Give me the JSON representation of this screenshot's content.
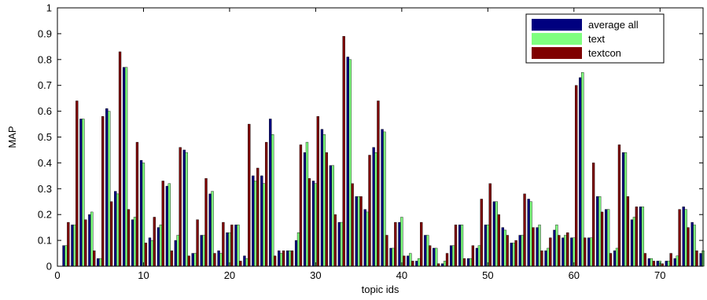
{
  "chart_data": {
    "type": "bar",
    "title": "",
    "xlabel": "topic ids",
    "ylabel": "MAP",
    "xlim": [
      0,
      75
    ],
    "ylim": [
      0,
      1
    ],
    "x_ticks": [
      0,
      10,
      20,
      30,
      40,
      50,
      60,
      70
    ],
    "y_ticks": [
      0,
      0.1,
      0.2,
      0.3,
      0.4,
      0.5,
      0.6,
      0.7,
      0.8,
      0.9,
      1
    ],
    "y_tick_labels": [
      "0",
      "0.1",
      "0.2",
      "0.3",
      "0.4",
      "0.5",
      "0.6",
      "0.7",
      "0.8",
      "0.9",
      "1"
    ],
    "grid": false,
    "legend_position": "top-right",
    "x": [
      1,
      2,
      3,
      4,
      5,
      6,
      7,
      8,
      9,
      10,
      11,
      12,
      13,
      14,
      15,
      16,
      17,
      18,
      19,
      20,
      21,
      22,
      23,
      24,
      25,
      26,
      27,
      28,
      29,
      30,
      31,
      32,
      33,
      34,
      35,
      36,
      37,
      38,
      39,
      40,
      41,
      42,
      43,
      44,
      45,
      46,
      47,
      48,
      49,
      50,
      51,
      52,
      53,
      54,
      55,
      56,
      57,
      58,
      59,
      60,
      61,
      62,
      63,
      64,
      65,
      66,
      67,
      68,
      69,
      70,
      71,
      72,
      73,
      74,
      75
    ],
    "series": [
      {
        "name": "average all",
        "color": "#00007f",
        "values": [
          0.08,
          0.16,
          0.57,
          0.2,
          0.03,
          0.61,
          0.29,
          0.77,
          0.18,
          0.41,
          0.11,
          0.15,
          0.31,
          0.1,
          0.45,
          0.05,
          0.12,
          0.28,
          0.06,
          0.13,
          0.16,
          0.04,
          0.35,
          0.35,
          0.57,
          0.06,
          0.06,
          0.1,
          0.44,
          0.33,
          0.53,
          0.39,
          0.17,
          0.81,
          0.27,
          0.22,
          0.46,
          0.53,
          0.07,
          0.17,
          0.04,
          0.02,
          0.12,
          0.07,
          0.01,
          0.08,
          0.16,
          0.03,
          0.07,
          0.16,
          0.25,
          0.15,
          0.09,
          0.12,
          0.26,
          0.15,
          0.06,
          0.14,
          0.11,
          0.11,
          0.73,
          0.11,
          0.27,
          0.22,
          0.06,
          0.44,
          0.18,
          0.23,
          0.03,
          0.02,
          0.02,
          0.03,
          0.23,
          0.17,
          0.05
        ]
      },
      {
        "name": "text",
        "color": "#7fff7f",
        "values": [
          0.08,
          0.16,
          0.57,
          0.21,
          0.03,
          0.6,
          0.28,
          0.77,
          0.19,
          0.4,
          0.1,
          0.16,
          0.32,
          0.12,
          0.44,
          0.05,
          0.12,
          0.29,
          0.05,
          0.13,
          0.16,
          0.03,
          0.33,
          0.32,
          0.51,
          0.05,
          0.06,
          0.13,
          0.48,
          0.32,
          0.51,
          0.39,
          0.17,
          0.8,
          0.27,
          0.21,
          0.44,
          0.52,
          0.07,
          0.19,
          0.05,
          0.03,
          0.12,
          0.07,
          0.02,
          0.08,
          0.16,
          0.03,
          0.08,
          0.16,
          0.25,
          0.14,
          0.09,
          0.12,
          0.25,
          0.16,
          0.07,
          0.16,
          0.12,
          0.11,
          0.75,
          0.11,
          0.27,
          0.22,
          0.07,
          0.44,
          0.19,
          0.23,
          0.03,
          0.02,
          0.02,
          0.04,
          0.22,
          0.16,
          0.06
        ]
      },
      {
        "name": "textcon",
        "color": "#7f0000",
        "values": [
          0.17,
          0.64,
          0.18,
          0.06,
          0.58,
          0.25,
          0.83,
          0.22,
          0.48,
          0.09,
          0.19,
          0.33,
          0.06,
          0.46,
          0.04,
          0.18,
          0.34,
          0.05,
          0.17,
          0.16,
          0.02,
          0.55,
          0.38,
          0.48,
          0.04,
          0.06,
          0.06,
          0.47,
          0.34,
          0.58,
          0.44,
          0.2,
          0.89,
          0.32,
          0.27,
          0.43,
          0.64,
          0.12,
          0.17,
          0.04,
          0.02,
          0.17,
          0.08,
          0.01,
          0.05,
          0.16,
          0.03,
          0.08,
          0.26,
          0.32,
          0.2,
          0.12,
          0.1,
          0.28,
          0.15,
          0.06,
          0.11,
          0.12,
          0.13,
          0.7,
          0.11,
          0.4,
          0.21,
          0.05,
          0.47,
          0.27,
          0.23,
          0.05,
          0.02,
          0.01,
          0.05,
          0.22,
          0.15,
          0.06,
          0.0
        ]
      }
    ]
  }
}
